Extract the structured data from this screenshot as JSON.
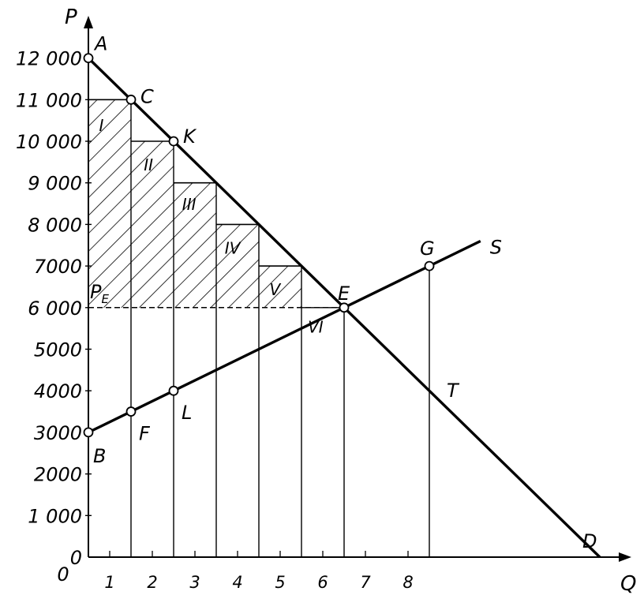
{
  "chart_data": {
    "type": "line",
    "title": "",
    "xlabel": "Q",
    "ylabel": "P",
    "xlim": [
      0,
      12
    ],
    "ylim": [
      0,
      12000
    ],
    "x_ticks": [
      "1",
      "2",
      "3",
      "4",
      "5",
      "6",
      "7",
      "8"
    ],
    "y_ticks": [
      "0",
      "1000",
      "2000",
      "3000",
      "4000",
      "5000",
      "6000",
      "7000",
      "8000",
      "9000",
      "10000",
      "11000",
      "12000"
    ],
    "y_tick_labels": [
      "0",
      "1 000",
      "2000",
      "3000",
      "4000",
      "5000",
      "6 000",
      "7000",
      "8 000",
      "9 000",
      "10 000",
      "11 000",
      "12 000"
    ],
    "series": [
      {
        "name": "D",
        "x": [
          0,
          12
        ],
        "y": [
          12000,
          0
        ]
      },
      {
        "name": "S",
        "x": [
          0,
          9.2
        ],
        "y": [
          3000,
          7600
        ]
      }
    ],
    "equilibrium": {
      "label": "E",
      "x": 6,
      "y": 6000
    },
    "price_line_label": "P",
    "price_line_subscript": "E",
    "points": [
      {
        "label": "A",
        "x": 0,
        "y": 12000,
        "open": true
      },
      {
        "label": "C",
        "x": 1,
        "y": 11000,
        "open": true
      },
      {
        "label": "K",
        "x": 2,
        "y": 10000,
        "open": true
      },
      {
        "label": "E",
        "x": 6,
        "y": 6000,
        "open": true
      },
      {
        "label": "G",
        "x": 8,
        "y": 7000,
        "open": true
      },
      {
        "label": "B",
        "x": 0,
        "y": 3000,
        "open": true
      },
      {
        "label": "F",
        "x": 1,
        "y": 3500,
        "open": true
      },
      {
        "label": "L",
        "x": 2,
        "y": 4000,
        "open": true
      },
      {
        "label": "T",
        "x": 8,
        "y": 4000,
        "open": false
      },
      {
        "label": "D",
        "x": 12,
        "y": 0,
        "open": false
      },
      {
        "label": "S",
        "x": 9.2,
        "y": 7600,
        "open": false
      }
    ],
    "surplus_steps": [
      {
        "label": "I",
        "x0": 0,
        "x1": 1,
        "y": 11000
      },
      {
        "label": "II",
        "x0": 1,
        "x1": 2,
        "y": 10000
      },
      {
        "label": "III",
        "x0": 2,
        "x1": 3,
        "y": 9000
      },
      {
        "label": "IV",
        "x0": 3,
        "x1": 4,
        "y": 8000
      },
      {
        "label": "V",
        "x0": 4,
        "x1": 5,
        "y": 7000
      },
      {
        "label": "VI",
        "x0": 5,
        "x1": 6,
        "y": 6000
      }
    ],
    "vertical_lines_x": [
      1,
      2,
      3,
      4,
      5,
      6,
      8
    ]
  }
}
